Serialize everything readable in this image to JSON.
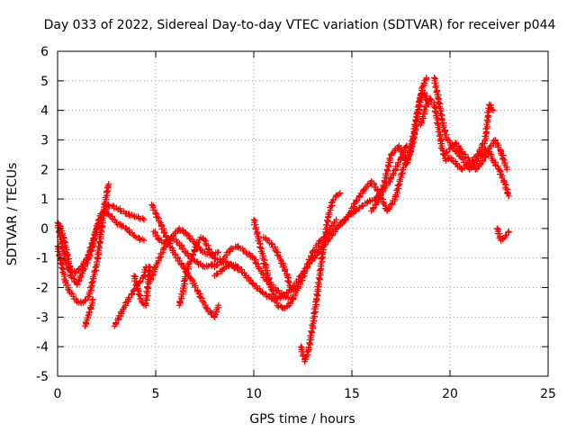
{
  "chart_data": {
    "type": "scatter",
    "title": "Day 033 of 2022, Sidereal Day-to-day VTEC variation (SDTVAR) for receiver p044",
    "xlabel": "GPS time / hours",
    "ylabel": "SDTVAR / TECUs",
    "xlim": [
      0,
      25
    ],
    "ylim": [
      -5,
      6
    ],
    "xticks": [
      0,
      5,
      10,
      15,
      20,
      25
    ],
    "yticks": [
      -5,
      -4,
      -3,
      -2,
      -1,
      0,
      1,
      2,
      3,
      4,
      5,
      6
    ],
    "xtick_labels": [
      "0",
      "5",
      "10",
      "15",
      "20",
      "25"
    ],
    "ytick_labels": [
      "-5",
      "-4",
      "-3",
      "-2",
      "-1",
      "0",
      "1",
      "2",
      "3",
      "4",
      "5",
      "6"
    ],
    "grid": true,
    "marker": "+",
    "color": "#ff0000",
    "series": [
      {
        "name": "s1",
        "x": [
          0.0,
          0.2,
          0.4,
          0.6,
          0.8,
          1.0,
          1.3,
          1.6,
          2.0,
          2.4,
          2.6
        ],
        "y": [
          -0.6,
          -1.2,
          -1.8,
          -2.1,
          -2.3,
          -2.5,
          -2.5,
          -2.3,
          -1.2,
          0.8,
          1.5
        ]
      },
      {
        "name": "s2",
        "x": [
          0.0,
          0.2,
          0.4,
          0.6,
          0.9,
          1.2,
          1.5,
          1.8,
          2.0,
          2.3,
          2.6,
          3.0,
          3.5,
          4.0,
          4.4
        ],
        "y": [
          0.2,
          -0.5,
          -1.1,
          -1.4,
          -1.5,
          -1.3,
          -1.0,
          -0.5,
          0.0,
          0.5,
          0.8,
          0.7,
          0.5,
          0.4,
          0.3
        ]
      },
      {
        "name": "s3",
        "x": [
          0.1,
          0.3,
          0.5,
          0.7,
          1.0,
          1.3,
          1.6,
          1.9,
          2.2,
          2.6,
          3.0,
          3.5,
          4.0,
          4.4
        ],
        "y": [
          0.1,
          -0.3,
          -0.9,
          -1.6,
          -1.9,
          -1.4,
          -1.0,
          -0.2,
          0.5,
          0.5,
          0.2,
          0.0,
          -0.3,
          -0.4
        ]
      },
      {
        "name": "s4",
        "x": [
          1.4,
          1.5,
          1.6,
          1.7,
          1.8
        ],
        "y": [
          -3.3,
          -3.1,
          -2.9,
          -2.7,
          -2.4
        ]
      },
      {
        "name": "s5",
        "x": [
          2.9,
          3.3,
          3.6,
          3.9,
          4.2,
          4.4,
          4.5,
          4.7,
          4.5
        ],
        "y": [
          -3.3,
          -2.8,
          -2.4,
          -2.1,
          -1.8,
          -1.6,
          -1.3,
          -1.3,
          -2.6
        ]
      },
      {
        "name": "s6",
        "x": [
          3.9,
          4.1,
          4.3,
          4.5
        ],
        "y": [
          -1.6,
          -2.1,
          -2.5,
          -2.6
        ]
      },
      {
        "name": "s7",
        "x": [
          4.7,
          5.0,
          5.4,
          5.8,
          6.2,
          6.5,
          7.0,
          7.5,
          8.0
        ],
        "y": [
          -1.8,
          -1.3,
          -0.7,
          -0.3,
          -0.5,
          -0.8,
          -1.1,
          -1.3,
          -1.2
        ]
      },
      {
        "name": "s8",
        "x": [
          4.8,
          5.0,
          5.3,
          5.6,
          6.0,
          6.4,
          6.8,
          7.2,
          7.6,
          8.0,
          8.2
        ],
        "y": [
          0.8,
          0.5,
          0.1,
          -0.4,
          -0.9,
          -1.3,
          -1.7,
          -2.2,
          -2.7,
          -3.0,
          -2.6
        ]
      },
      {
        "name": "s9",
        "x": [
          4.9,
          5.2,
          5.5,
          5.8,
          6.2,
          6.6,
          7.0,
          7.4,
          7.8,
          8.2
        ],
        "y": [
          -0.1,
          -0.4,
          -0.5,
          -0.3,
          0.0,
          -0.2,
          -0.5,
          -0.8,
          -0.9,
          -0.8
        ]
      },
      {
        "name": "s10",
        "x": [
          6.2,
          6.4,
          6.5,
          6.7,
          6.9,
          7.1,
          7.3,
          7.5,
          7.7,
          8.0,
          8.4,
          8.8,
          9.2
        ],
        "y": [
          -2.6,
          -2.1,
          -1.7,
          -1.2,
          -0.9,
          -0.5,
          -0.3,
          -0.4,
          -0.7,
          -1.0,
          -1.1,
          -1.2,
          -1.4
        ]
      },
      {
        "name": "s11",
        "x": [
          8.0,
          8.4,
          8.8,
          9.2,
          9.6,
          10.0,
          10.4,
          10.8,
          11.2,
          11.6,
          12.0
        ],
        "y": [
          -1.3,
          -1.1,
          -0.7,
          -0.6,
          -0.8,
          -1.0,
          -1.5,
          -1.9,
          -2.1,
          -2.3,
          -2.4
        ]
      },
      {
        "name": "s12",
        "x": [
          8.0,
          8.4,
          8.8,
          9.2,
          9.6,
          10.0,
          10.5,
          11.0,
          11.5,
          12.0,
          12.4,
          12.8,
          13.2
        ],
        "y": [
          -1.6,
          -1.4,
          -1.2,
          -1.3,
          -1.6,
          -1.9,
          -2.2,
          -2.4,
          -2.3,
          -2.0,
          -1.6,
          -1.2,
          -0.9
        ]
      },
      {
        "name": "s13",
        "x": [
          10.0,
          10.3,
          10.6,
          10.9,
          11.2,
          11.5,
          11.8,
          12.2,
          12.6,
          13.0,
          13.4,
          13.8,
          14.0,
          14.2
        ],
        "y": [
          0.3,
          -0.5,
          -1.3,
          -2.0,
          -2.6,
          -2.7,
          -2.6,
          -2.1,
          -1.5,
          -0.8,
          -0.4,
          -0.2,
          0.1,
          0.3
        ]
      },
      {
        "name": "s14",
        "x": [
          10.5,
          10.7,
          10.9,
          11.1,
          11.4,
          11.7,
          11.9
        ],
        "y": [
          -0.3,
          -0.4,
          -0.5,
          -0.7,
          -1.1,
          -1.6,
          -2.1
        ]
      },
      {
        "name": "s15",
        "x": [
          12.4,
          12.6,
          12.8,
          13.0,
          13.2,
          13.4,
          13.6,
          13.8,
          14.0,
          14.2,
          14.4
        ],
        "y": [
          -4.0,
          -4.5,
          -4.1,
          -3.3,
          -2.4,
          -1.4,
          -0.4,
          0.4,
          0.9,
          1.1,
          1.2
        ]
      },
      {
        "name": "s16",
        "x": [
          13.0,
          13.4,
          13.8,
          14.2,
          14.6,
          15.0,
          15.4,
          15.8,
          16.2,
          16.6,
          17.0,
          17.5,
          17.8
        ],
        "y": [
          -1.0,
          -0.7,
          -0.4,
          0.0,
          0.3,
          0.5,
          0.7,
          0.9,
          1.0,
          1.3,
          1.7,
          2.4,
          2.8
        ]
      },
      {
        "name": "s17",
        "x": [
          14.4,
          14.8,
          15.2,
          15.6,
          16.0,
          16.4,
          16.8,
          17.2,
          17.6,
          18.0,
          18.2,
          18.4,
          18.6,
          18.8
        ],
        "y": [
          0.1,
          0.4,
          0.9,
          1.3,
          1.6,
          1.2,
          0.6,
          1.0,
          2.0,
          2.6,
          3.2,
          4.0,
          4.8,
          5.1
        ]
      },
      {
        "name": "s18",
        "x": [
          16.0,
          16.3,
          16.6,
          17.0,
          17.4,
          17.8,
          18.1,
          18.3,
          18.5,
          18.7,
          18.9
        ],
        "y": [
          0.6,
          0.9,
          1.4,
          2.5,
          2.8,
          2.2,
          3.0,
          3.8,
          4.5,
          4.6,
          4.2
        ]
      },
      {
        "name": "s19",
        "x": [
          18.5,
          18.8,
          19.0,
          19.2,
          19.4,
          19.6,
          19.8,
          20.0,
          20.3,
          20.6,
          21.0,
          21.4,
          21.8,
          22.0,
          22.2
        ],
        "y": [
          3.5,
          4.2,
          4.4,
          4.2,
          3.5,
          2.7,
          2.3,
          2.4,
          2.2,
          2.0,
          2.2,
          2.5,
          3.0,
          4.2,
          4.0
        ]
      },
      {
        "name": "s20",
        "x": [
          19.2,
          19.4,
          19.6,
          19.8,
          20.0,
          20.3,
          20.6,
          21.0,
          21.4,
          21.8,
          22.0,
          22.2,
          22.5,
          22.8,
          23.0
        ],
        "y": [
          5.1,
          4.4,
          3.7,
          3.1,
          2.9,
          2.6,
          2.4,
          2.0,
          2.3,
          2.7,
          2.6,
          2.3,
          2.0,
          1.5,
          1.1
        ]
      },
      {
        "name": "s21",
        "x": [
          19.7,
          20.0,
          20.3,
          20.6,
          21.0,
          21.3,
          21.6,
          22.0,
          22.3,
          22.6,
          22.9
        ],
        "y": [
          2.5,
          2.7,
          2.9,
          2.6,
          2.3,
          2.0,
          2.2,
          2.7,
          3.0,
          2.6,
          2.0
        ]
      },
      {
        "name": "s22",
        "x": [
          22.4,
          22.6,
          22.8,
          23.0
        ],
        "y": [
          0.0,
          -0.4,
          -0.3,
          -0.1
        ]
      }
    ]
  }
}
